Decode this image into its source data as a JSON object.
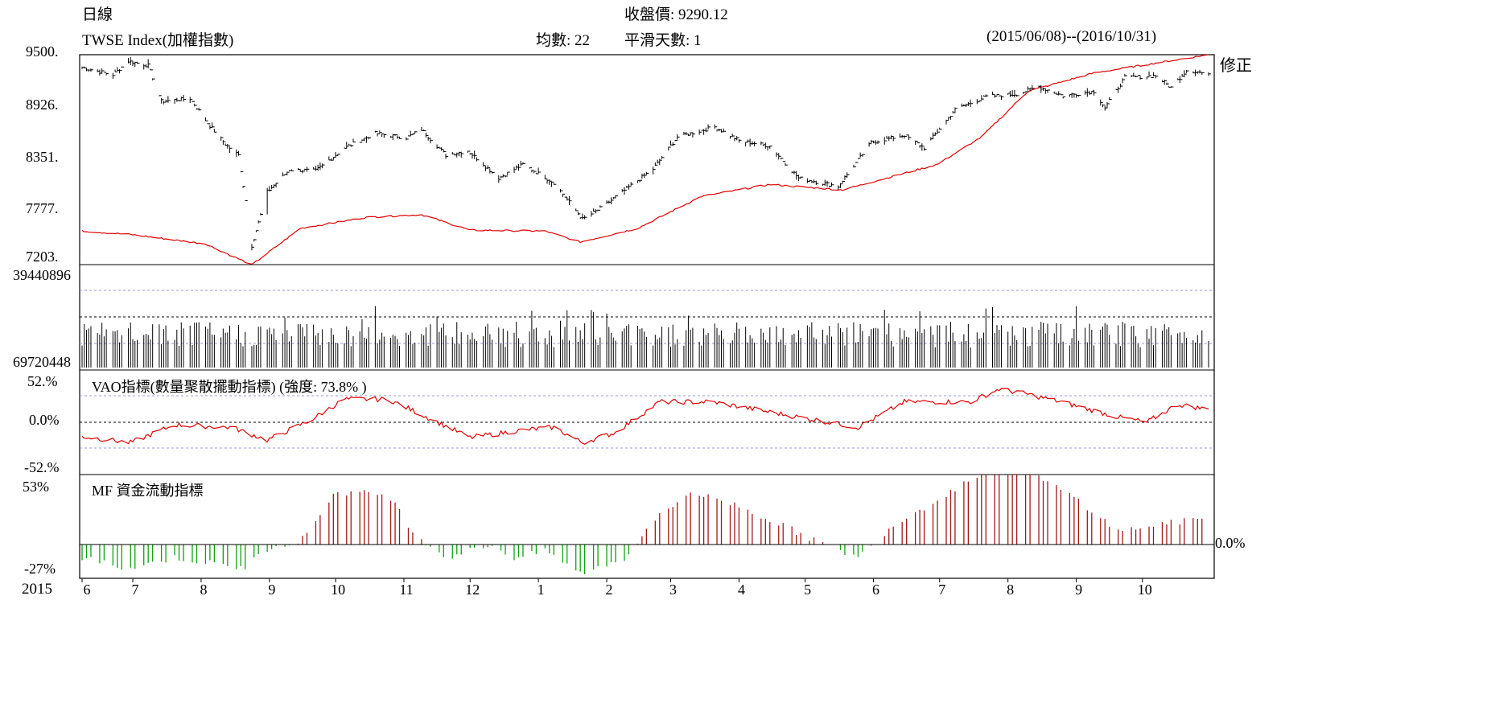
{
  "header": {
    "period": "日線",
    "close_label": "收盤價:",
    "close_value": "9290.12",
    "index_name": "TWSE Index(加權指數)",
    "ma_label": "均數:",
    "ma_value": "22",
    "smooth_label": "平滑天數:",
    "smooth_value": "1",
    "date_range": "(2015/06/08)--(2016/10/31)"
  },
  "price_panel": {
    "y_ticks": [
      "9500.",
      "8926.",
      "8351.",
      "7777.",
      "7203."
    ],
    "adjust_label": "修正"
  },
  "volume_panel": {
    "top_label": "39440896",
    "bottom_label": "69720448"
  },
  "vao_panel": {
    "title": "VAO指標(數量聚散擺動指標) (強度: 73.8% )",
    "y_ticks": [
      "52.%",
      "0.0%",
      "-52.%"
    ]
  },
  "mf_panel": {
    "title": "MF 資金流動指標",
    "y_ticks": [
      "53%",
      "-27%"
    ],
    "zero_label": "0.0%"
  },
  "x_axis": {
    "year_label": "2015",
    "month_labels": [
      "6",
      "7",
      "8",
      "9",
      "10",
      "11",
      "12",
      "1",
      "2",
      "3",
      "4",
      "5",
      "6",
      "7",
      "8",
      "9",
      "10"
    ]
  },
  "colors": {
    "bars": "#000000",
    "moving_average": "#e00000",
    "mf_positive": "#a01818",
    "mf_negative": "#10a010",
    "grid_dashed": "#9a9ad8"
  },
  "chart_data": {
    "type": "ohlc",
    "index": "TWSE Index",
    "price_anchors": [
      {
        "date": "2015-06-08",
        "close": 9360
      },
      {
        "date": "2015-06-22",
        "close": 9280
      },
      {
        "date": "2015-06-29",
        "close": 9430
      },
      {
        "date": "2015-07-08",
        "close": 9380
      },
      {
        "date": "2015-07-14",
        "close": 8990
      },
      {
        "date": "2015-07-27",
        "close": 9020
      },
      {
        "date": "2015-08-04",
        "close": 8750
      },
      {
        "date": "2015-08-12",
        "close": 8520
      },
      {
        "date": "2015-08-18",
        "close": 8400
      },
      {
        "date": "2015-08-24",
        "close": 7410
      },
      {
        "date": "2015-08-31",
        "close": 8000
      },
      {
        "date": "2015-09-10",
        "close": 8240
      },
      {
        "date": "2015-09-22",
        "close": 8230
      },
      {
        "date": "2015-10-05",
        "close": 8480
      },
      {
        "date": "2015-10-19",
        "close": 8640
      },
      {
        "date": "2015-11-02",
        "close": 8590
      },
      {
        "date": "2015-11-09",
        "close": 8680
      },
      {
        "date": "2015-11-20",
        "close": 8400
      },
      {
        "date": "2015-11-30",
        "close": 8450
      },
      {
        "date": "2015-12-14",
        "close": 8150
      },
      {
        "date": "2015-12-25",
        "close": 8300
      },
      {
        "date": "2016-01-08",
        "close": 8100
      },
      {
        "date": "2016-01-21",
        "close": 7700
      },
      {
        "date": "2016-01-28",
        "close": 7800
      },
      {
        "date": "2016-02-22",
        "close": 8250
      },
      {
        "date": "2016-03-04",
        "close": 8600
      },
      {
        "date": "2016-03-21",
        "close": 8710
      },
      {
        "date": "2016-04-01",
        "close": 8560
      },
      {
        "date": "2016-04-15",
        "close": 8500
      },
      {
        "date": "2016-04-28",
        "close": 8150
      },
      {
        "date": "2016-05-16",
        "close": 8060
      },
      {
        "date": "2016-05-31",
        "close": 8540
      },
      {
        "date": "2016-06-15",
        "close": 8620
      },
      {
        "date": "2016-06-24",
        "close": 8480
      },
      {
        "date": "2016-07-08",
        "close": 8900
      },
      {
        "date": "2016-07-22",
        "close": 9040
      },
      {
        "date": "2016-08-05",
        "close": 9070
      },
      {
        "date": "2016-08-15",
        "close": 9150
      },
      {
        "date": "2016-08-26",
        "close": 9050
      },
      {
        "date": "2016-09-09",
        "close": 9100
      },
      {
        "date": "2016-09-14",
        "close": 8920
      },
      {
        "date": "2016-09-23",
        "close": 9250
      },
      {
        "date": "2016-10-07",
        "close": 9270
      },
      {
        "date": "2016-10-14",
        "close": 9140
      },
      {
        "date": "2016-10-21",
        "close": 9330
      },
      {
        "date": "2016-10-31",
        "close": 9290.12
      }
    ],
    "moving_average_anchors": [
      {
        "date": "2015-06-08",
        "value": 7570
      },
      {
        "date": "2015-07-01",
        "value": 7530
      },
      {
        "date": "2015-08-03",
        "value": 7430
      },
      {
        "date": "2015-08-24",
        "value": 7200
      },
      {
        "date": "2015-09-15",
        "value": 7600
      },
      {
        "date": "2015-10-15",
        "value": 7720
      },
      {
        "date": "2015-11-09",
        "value": 7750
      },
      {
        "date": "2015-12-01",
        "value": 7580
      },
      {
        "date": "2016-01-04",
        "value": 7570
      },
      {
        "date": "2016-01-20",
        "value": 7450
      },
      {
        "date": "2016-02-15",
        "value": 7600
      },
      {
        "date": "2016-03-15",
        "value": 7950
      },
      {
        "date": "2016-04-15",
        "value": 8080
      },
      {
        "date": "2016-05-18",
        "value": 8020
      },
      {
        "date": "2016-06-30",
        "value": 8300
      },
      {
        "date": "2016-07-20",
        "value": 8600
      },
      {
        "date": "2016-08-10",
        "value": 9100
      },
      {
        "date": "2016-09-09",
        "value": 9300
      },
      {
        "date": "2016-10-31",
        "value": 9500
      }
    ],
    "price_ylim": [
      7203,
      9500
    ],
    "volume_range": [
      39440896,
      69720448
    ],
    "vao_anchors": [
      {
        "date": "2015-06-08",
        "value": -28
      },
      {
        "date": "2015-06-30",
        "value": -40
      },
      {
        "date": "2015-07-20",
        "value": -5
      },
      {
        "date": "2015-08-15",
        "value": -10
      },
      {
        "date": "2015-08-31",
        "value": -35
      },
      {
        "date": "2015-09-20",
        "value": 5
      },
      {
        "date": "2015-10-05",
        "value": 45
      },
      {
        "date": "2015-10-25",
        "value": 45
      },
      {
        "date": "2015-11-09",
        "value": 15
      },
      {
        "date": "2015-12-01",
        "value": -30
      },
      {
        "date": "2015-12-25",
        "value": -15
      },
      {
        "date": "2016-01-08",
        "value": -10
      },
      {
        "date": "2016-01-21",
        "value": -40
      },
      {
        "date": "2016-02-05",
        "value": -20
      },
      {
        "date": "2016-02-25",
        "value": 40
      },
      {
        "date": "2016-03-20",
        "value": 40
      },
      {
        "date": "2016-04-15",
        "value": 20
      },
      {
        "date": "2016-05-05",
        "value": 5
      },
      {
        "date": "2016-05-25",
        "value": -10
      },
      {
        "date": "2016-06-15",
        "value": 40
      },
      {
        "date": "2016-07-15",
        "value": 40
      },
      {
        "date": "2016-07-28",
        "value": 65
      },
      {
        "date": "2016-08-10",
        "value": 55
      },
      {
        "date": "2016-08-25",
        "value": 40
      },
      {
        "date": "2016-09-20",
        "value": 10
      },
      {
        "date": "2016-10-03",
        "value": 0
      },
      {
        "date": "2016-10-17",
        "value": 35
      },
      {
        "date": "2016-10-31",
        "value": 25
      }
    ],
    "vao_ylim": [
      -52,
      52
    ],
    "mf_anchors": [
      {
        "date": "2015-06-08",
        "value": -10
      },
      {
        "date": "2015-06-29",
        "value": -18
      },
      {
        "date": "2015-07-20",
        "value": -10
      },
      {
        "date": "2015-08-20",
        "value": -18
      },
      {
        "date": "2015-09-03",
        "value": 0
      },
      {
        "date": "2015-09-15",
        "value": 2
      },
      {
        "date": "2015-10-01",
        "value": 40
      },
      {
        "date": "2015-10-25",
        "value": 38
      },
      {
        "date": "2015-11-05",
        "value": 10
      },
      {
        "date": "2015-11-20",
        "value": -10
      },
      {
        "date": "2015-12-10",
        "value": 0
      },
      {
        "date": "2015-12-21",
        "value": -10
      },
      {
        "date": "2016-01-05",
        "value": -5
      },
      {
        "date": "2016-01-20",
        "value": -22
      },
      {
        "date": "2016-02-10",
        "value": -10
      },
      {
        "date": "2016-02-20",
        "value": 15
      },
      {
        "date": "2016-03-10",
        "value": 40
      },
      {
        "date": "2016-03-31",
        "value": 30
      },
      {
        "date": "2016-04-20",
        "value": 15
      },
      {
        "date": "2016-05-10",
        "value": 0
      },
      {
        "date": "2016-05-25",
        "value": -10
      },
      {
        "date": "2016-06-10",
        "value": 15
      },
      {
        "date": "2016-07-01",
        "value": 35
      },
      {
        "date": "2016-07-25",
        "value": 60
      },
      {
        "date": "2016-08-10",
        "value": 55
      },
      {
        "date": "2016-09-01",
        "value": 35
      },
      {
        "date": "2016-09-20",
        "value": 10
      },
      {
        "date": "2016-10-07",
        "value": 15
      },
      {
        "date": "2016-10-31",
        "value": 20
      }
    ],
    "mf_ylim": [
      -27,
      53
    ]
  }
}
